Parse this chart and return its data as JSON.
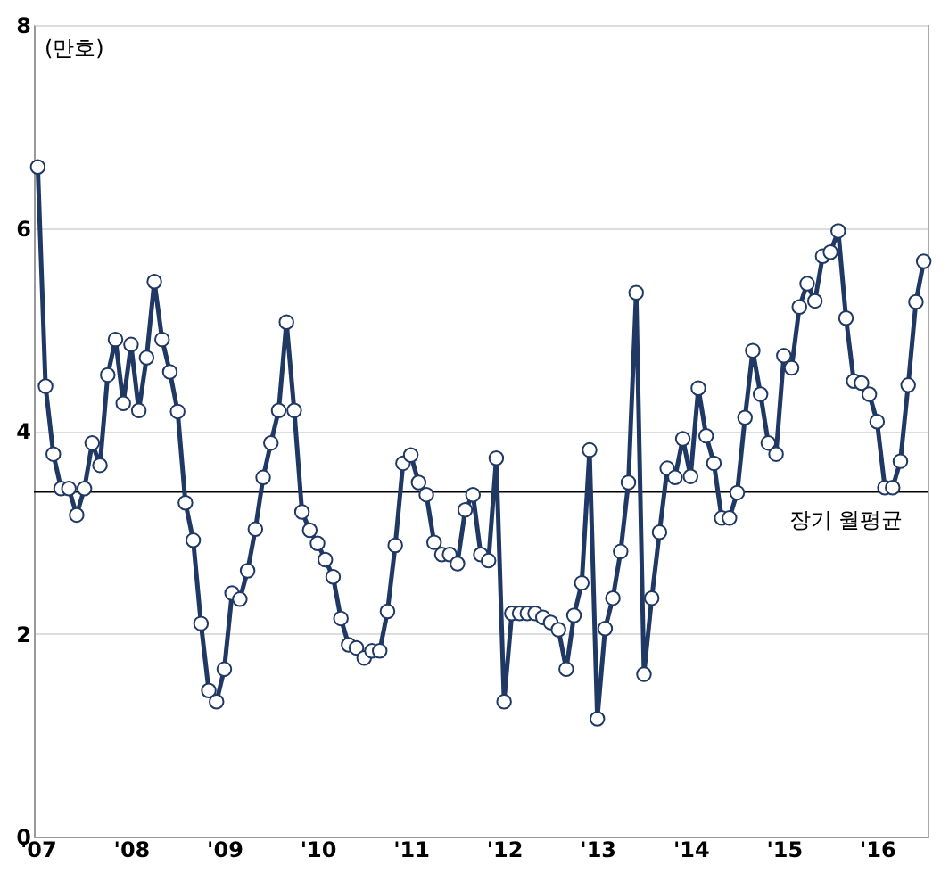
{
  "chart_data": {
    "type": "line",
    "ylabel": "(만호)",
    "categories": [
      "'07",
      null,
      null,
      null,
      null,
      null,
      null,
      null,
      null,
      null,
      null,
      null,
      "'08",
      null,
      null,
      null,
      null,
      null,
      null,
      null,
      null,
      null,
      null,
      null,
      "'09",
      null,
      null,
      null,
      null,
      null,
      null,
      null,
      null,
      null,
      null,
      null,
      "'10",
      null,
      null,
      null,
      null,
      null,
      null,
      null,
      null,
      null,
      null,
      null,
      "'11",
      null,
      null,
      null,
      null,
      null,
      null,
      null,
      null,
      null,
      null,
      null,
      "'12",
      null,
      null,
      null,
      null,
      null,
      null,
      null,
      null,
      null,
      null,
      null,
      "'13",
      null,
      null,
      null,
      null,
      null,
      null,
      null,
      null,
      null,
      null,
      null,
      "'14",
      null,
      null,
      null,
      null,
      null,
      null,
      null,
      null,
      null,
      null,
      null,
      "'15",
      null,
      null,
      null,
      null,
      null,
      null,
      null,
      null,
      null,
      null,
      null,
      "'16",
      null,
      null,
      null,
      null,
      null,
      null
    ],
    "series": [
      {
        "color": "#1f3864",
        "values": [
          6.6,
          4.44,
          3.77,
          3.43,
          3.43,
          3.17,
          3.43,
          3.88,
          3.66,
          4.55,
          4.9,
          4.27,
          4.85,
          4.2,
          4.72,
          5.47,
          4.9,
          4.58,
          4.19,
          3.29,
          2.92,
          2.1,
          1.44,
          1.33,
          1.65,
          2.4,
          2.34,
          2.62,
          3.03,
          3.54,
          3.88,
          4.2,
          5.07,
          4.2,
          3.2,
          3.02,
          2.89,
          2.73,
          2.56,
          2.15,
          1.89,
          1.86,
          1.76,
          1.83,
          1.83,
          2.22,
          2.87,
          3.68,
          3.76,
          3.49,
          3.37,
          2.9,
          2.78,
          2.78,
          2.69,
          3.22,
          3.37,
          2.78,
          2.72,
          3.73,
          1.33,
          2.2,
          2.2,
          2.2,
          2.2,
          2.16,
          2.11,
          2.04,
          1.65,
          2.18,
          2.5,
          3.81,
          1.16,
          2.05,
          2.35,
          2.81,
          3.49,
          5.36,
          1.6,
          2.35,
          3.0,
          3.63,
          3.54,
          3.92,
          3.55,
          4.42,
          3.95,
          3.68,
          3.14,
          3.14,
          3.39,
          4.13,
          4.79,
          4.36,
          3.88,
          3.77,
          4.74,
          4.62,
          5.22,
          5.45,
          5.28,
          5.72,
          5.76,
          5.97,
          5.11,
          4.49,
          4.47,
          4.36,
          4.09,
          3.44,
          3.44,
          3.7,
          4.45,
          5.27,
          5.67
        ]
      }
    ],
    "ylim": [
      0,
      8
    ],
    "yticks": [
      0,
      2,
      4,
      6,
      8
    ],
    "grid": "y",
    "marker": "circle",
    "line_style": "solid",
    "ref_lines": [
      {
        "axis": "y",
        "value": 3.4,
        "label": "장기 월평균",
        "color": "#000000"
      }
    ]
  }
}
